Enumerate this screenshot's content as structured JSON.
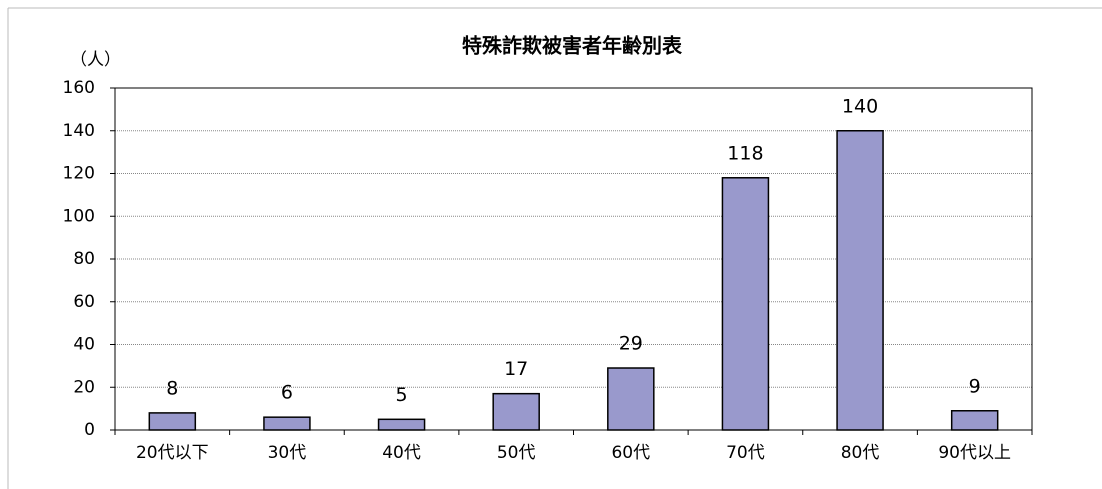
{
  "chart_data": {
    "type": "bar",
    "title": "特殊詐欺被害者年齢別表",
    "y_label": "（人）",
    "categories": [
      "20代以下",
      "30代",
      "40代",
      "50代",
      "60代",
      "70代",
      "80代",
      "90代以上"
    ],
    "values": [
      8,
      6,
      5,
      17,
      29,
      118,
      140,
      9
    ],
    "color": "#9999cc",
    "ylim": [
      0,
      160
    ],
    "yticks": [
      0,
      20,
      40,
      60,
      80,
      100,
      120,
      140,
      160
    ],
    "grid": true
  }
}
